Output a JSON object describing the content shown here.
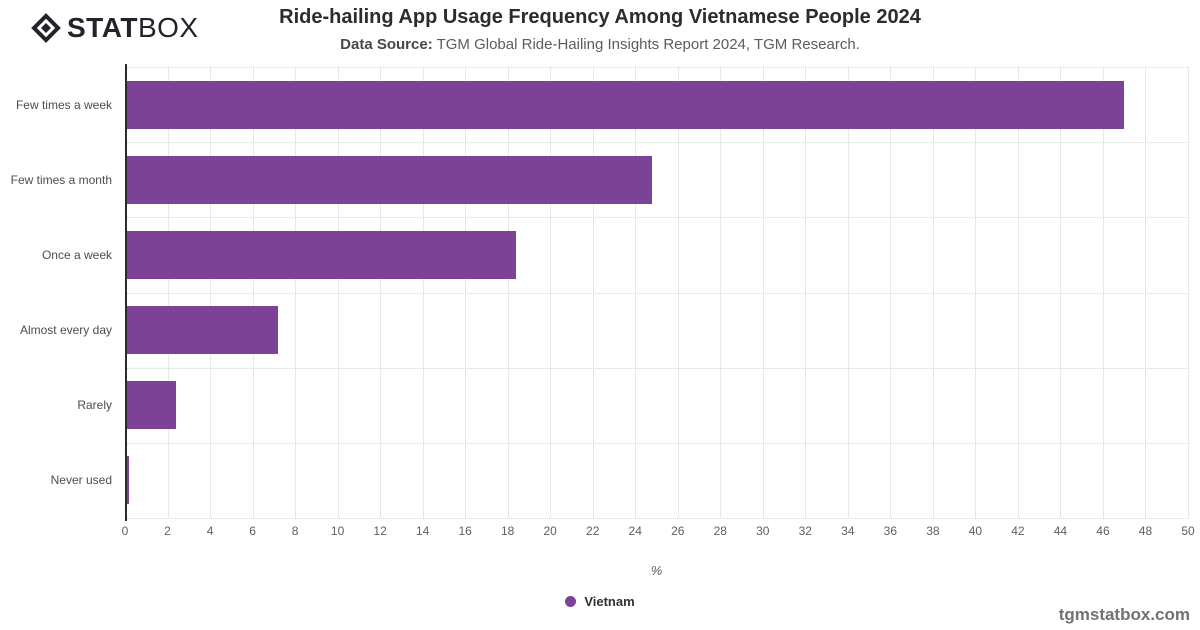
{
  "header": {
    "logo_stat": "STAT",
    "logo_box": "BOX",
    "title": "Ride-hailing App Usage Frequency Among Vietnamese People 2024",
    "subtitle_label": "Data Source:",
    "subtitle_text": "TGM Global Ride-Hailing Insights Report 2024, TGM Research."
  },
  "chart_data": {
    "type": "bar",
    "orientation": "horizontal",
    "categories": [
      "Few times a week",
      "Few times a month",
      "Once a week",
      "Almost every day",
      "Rarely",
      "Never used"
    ],
    "series": [
      {
        "name": "Vietnam",
        "values": [
          47,
          24.8,
          18.4,
          7.2,
          2.4,
          0.2
        ]
      }
    ],
    "xlabel": "%",
    "xlim": [
      0,
      50
    ],
    "x_tick_step": 2,
    "grid": true,
    "legend_position": "bottom",
    "colors": {
      "bar": "#7b4296",
      "axis": "#2a2a2f",
      "grid": "#e8e8e8"
    }
  },
  "footer": {
    "watermark": "tgmstatbox.com"
  }
}
